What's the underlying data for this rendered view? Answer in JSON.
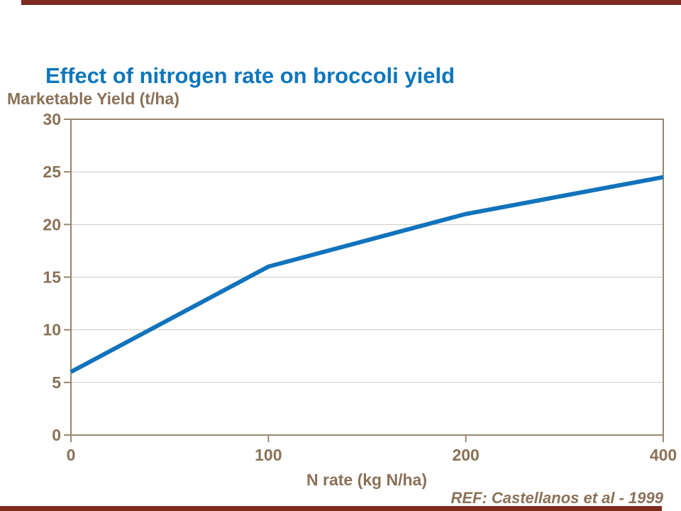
{
  "slide": {
    "title": "Effect of nitrogen rate on broccoli yield",
    "ref_note": "REF: Castellanos et al - 1999"
  },
  "chart_data": {
    "type": "line",
    "title": "Effect of nitrogen rate on broccoli yield",
    "xlabel": "N rate (kg N/ha)",
    "ylabel": "Marketable Yield (t/ha)",
    "categories": [
      "0",
      "100",
      "200",
      "400"
    ],
    "series": [
      {
        "name": "Marketable yield",
        "values": [
          6,
          16,
          21,
          24.5
        ]
      }
    ],
    "x_axis_type": "categorical-evenly-spaced",
    "y_ticks": [
      0,
      5,
      10,
      15,
      20,
      25,
      30
    ],
    "ylim": [
      0,
      30
    ],
    "grid": "horizontal-faint",
    "legend": "none",
    "annotation": "REF: Castellanos et al - 1999"
  },
  "colors": {
    "background": "#ffffff",
    "title_blue": "#0d76bc",
    "line_blue": "#1173bc",
    "axis_text_brown": "#8a7157",
    "frame_brown": "#97876f",
    "gridline_gray": "#cfc8be",
    "accent_bar_maroon": "#7d2b20"
  }
}
